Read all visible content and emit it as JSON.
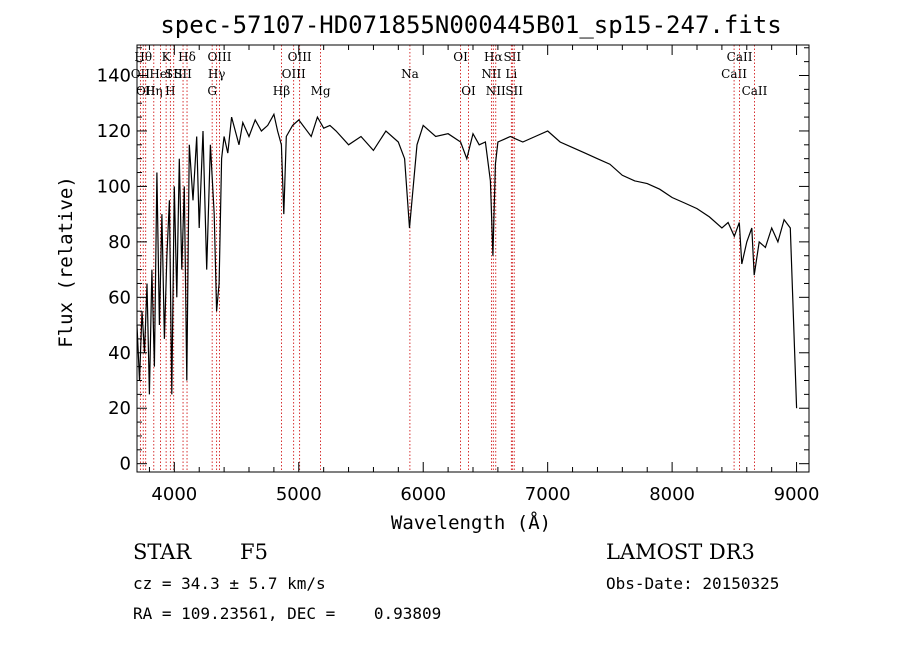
{
  "chart_data": {
    "type": "line",
    "title": "spec-57107-HD071855N000445B01_sp15-247.fits",
    "xlabel": "Wavelength (Å)",
    "ylabel": "Flux (relative)",
    "xlim": [
      3700,
      9100
    ],
    "ylim": [
      -3,
      151
    ],
    "xticks": [
      4000,
      5000,
      6000,
      7000,
      8000,
      9000
    ],
    "yticks": [
      0,
      20,
      40,
      60,
      80,
      100,
      120,
      140
    ],
    "series": [
      {
        "name": "flux",
        "x": [
          3700,
          3720,
          3740,
          3760,
          3780,
          3800,
          3820,
          3840,
          3860,
          3880,
          3900,
          3920,
          3940,
          3960,
          3980,
          4000,
          4020,
          4040,
          4060,
          4080,
          4100,
          4120,
          4150,
          4180,
          4200,
          4230,
          4260,
          4290,
          4320,
          4340,
          4360,
          4380,
          4400,
          4430,
          4460,
          4490,
          4520,
          4550,
          4600,
          4650,
          4700,
          4750,
          4800,
          4830,
          4860,
          4880,
          4900,
          4950,
          5000,
          5050,
          5100,
          5150,
          5200,
          5250,
          5300,
          5400,
          5500,
          5600,
          5700,
          5800,
          5850,
          5890,
          5950,
          6000,
          6100,
          6200,
          6300,
          6350,
          6400,
          6450,
          6500,
          6540,
          6560,
          6580,
          6600,
          6650,
          6700,
          6750,
          6800,
          6900,
          7000,
          7100,
          7200,
          7300,
          7400,
          7500,
          7600,
          7700,
          7800,
          7900,
          8000,
          8100,
          8200,
          8300,
          8400,
          8450,
          8500,
          8540,
          8560,
          8600,
          8640,
          8660,
          8700,
          8750,
          8800,
          8850,
          8900,
          8950,
          9000
        ],
        "y": [
          50,
          30,
          55,
          40,
          65,
          25,
          70,
          35,
          105,
          50,
          90,
          45,
          75,
          95,
          25,
          100,
          60,
          110,
          70,
          100,
          30,
          115,
          95,
          118,
          85,
          120,
          70,
          115,
          90,
          55,
          65,
          110,
          118,
          112,
          125,
          120,
          115,
          123,
          118,
          124,
          120,
          122,
          126,
          120,
          115,
          90,
          118,
          122,
          124,
          121,
          118,
          125,
          121,
          122,
          120,
          115,
          118,
          113,
          120,
          116,
          110,
          85,
          115,
          122,
          118,
          119,
          116,
          110,
          119,
          115,
          116,
          102,
          75,
          108,
          116,
          117,
          118,
          117,
          116,
          118,
          120,
          116,
          114,
          112,
          110,
          108,
          104,
          102,
          101,
          99,
          96,
          94,
          92,
          89,
          85,
          87,
          82,
          87,
          72,
          80,
          85,
          68,
          80,
          78,
          85,
          80,
          88,
          85,
          20
        ]
      }
    ],
    "line_marks": [
      {
        "x": 3727,
        "label": "OII",
        "row": 2
      },
      {
        "x": 3750,
        "label": "Hθ",
        "row": 1
      },
      {
        "x": 3770,
        "label": "OII",
        "row": 3
      },
      {
        "x": 3835,
        "label": "Hη",
        "row": 3
      },
      {
        "x": 3889,
        "label": "HeI",
        "row": 2
      },
      {
        "x": 3934,
        "label": "K",
        "row": 1
      },
      {
        "x": 3968,
        "label": "H",
        "row": 3
      },
      {
        "x": 3995,
        "label": "SII",
        "row": 2
      },
      {
        "x": 4102,
        "label": "Hδ",
        "row": 1
      },
      {
        "x": 4070,
        "label": "SII",
        "row": 2
      },
      {
        "x": 4304,
        "label": "G",
        "row": 3
      },
      {
        "x": 4340,
        "label": "Hγ",
        "row": 2
      },
      {
        "x": 4363,
        "label": "OIII",
        "row": 1
      },
      {
        "x": 4861,
        "label": "Hβ",
        "row": 3
      },
      {
        "x": 4959,
        "label": "OIII",
        "row": 2
      },
      {
        "x": 5007,
        "label": "OIII",
        "row": 1
      },
      {
        "x": 5175,
        "label": "Mg",
        "row": 3
      },
      {
        "x": 5893,
        "label": "Na",
        "row": 2
      },
      {
        "x": 6300,
        "label": "OI",
        "row": 1
      },
      {
        "x": 6364,
        "label": "OI",
        "row": 3
      },
      {
        "x": 6548,
        "label": "NII",
        "row": 2
      },
      {
        "x": 6563,
        "label": "Hα",
        "row": 1
      },
      {
        "x": 6583,
        "label": "NII",
        "row": 3
      },
      {
        "x": 6708,
        "label": "Li",
        "row": 2
      },
      {
        "x": 6716,
        "label": "SII",
        "row": 1
      },
      {
        "x": 6731,
        "label": "SII",
        "row": 3
      },
      {
        "x": 8498,
        "label": "CaII",
        "row": 2
      },
      {
        "x": 8542,
        "label": "CaII",
        "row": 1
      },
      {
        "x": 8662,
        "label": "CaII",
        "row": 3
      }
    ]
  },
  "info": {
    "class_label": "STAR",
    "subclass": "F5",
    "survey": "LAMOST DR3",
    "cz": "cz = 34.3 ± 5.7 km/s",
    "obs_date": "Obs-Date: 20150325",
    "radec": "RA = 109.23561, DEC =    0.93809"
  }
}
